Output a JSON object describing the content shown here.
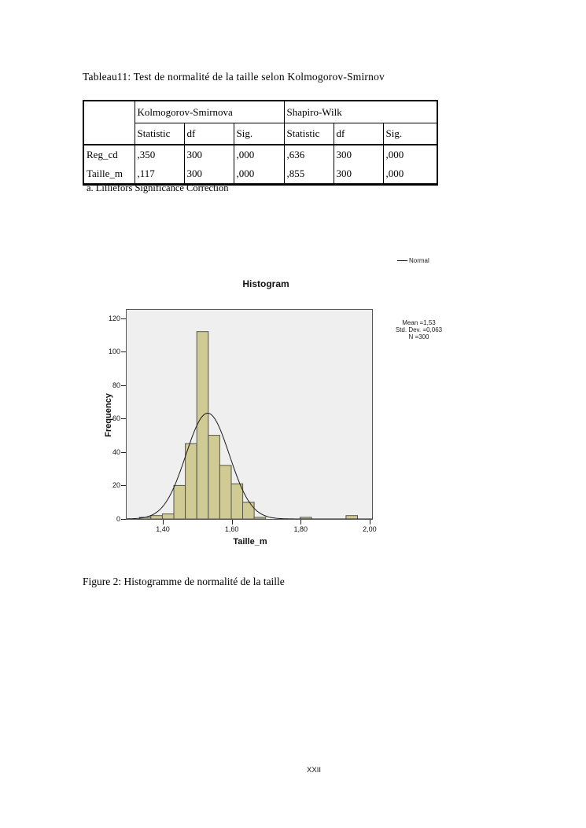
{
  "page": {
    "number_label": "XXII"
  },
  "table_section": {
    "title": "Tableau11: Test de normalité de la taille selon Kolmogorov-Smirnov",
    "table": {
      "group_headers": [
        "Kolmogorov-Smirnova",
        "Shapiro-Wilk"
      ],
      "sub_headers": [
        "Statistic",
        "df",
        "Sig.",
        "Statistic",
        "df",
        "Sig."
      ],
      "rows": [
        {
          "label": "Reg_cd",
          "values": [
            ",350",
            "300",
            ",000",
            ",636",
            "300",
            ",000"
          ]
        },
        {
          "label": "Taille_m",
          "values": [
            ",117",
            "300",
            ",000",
            ",855",
            "300",
            ",000"
          ]
        }
      ],
      "footnote": "a. Lilliefors Significance Correction"
    }
  },
  "figure_section": {
    "caption": "Figure 2: Histogramme de normalité de la taille"
  },
  "chart_data": {
    "type": "bar",
    "subtype": "histogram",
    "title": "Histogram",
    "xlabel": "Taille_m",
    "ylabel": "Frequency",
    "legend": {
      "label": "Normal",
      "position": "top-right-outside"
    },
    "stats_box": [
      "Mean =1,53",
      "Std. Dev. =0,063",
      "N =300"
    ],
    "bin_start": 1.332,
    "bin_width": 0.0333,
    "counts": [
      1,
      2,
      3,
      20,
      45,
      112,
      50,
      32,
      21,
      10,
      1,
      0,
      0,
      0,
      1,
      0,
      0,
      0,
      2
    ],
    "normal_curve": {
      "mean": 1.53,
      "std_dev": 0.063,
      "n": 300
    },
    "x_tick_values": [
      1.4,
      1.6,
      1.8,
      2.0
    ],
    "x_tick_labels": [
      "1,40",
      "1,60",
      "1,80",
      "2,00"
    ],
    "y_tick_values": [
      0,
      20,
      40,
      60,
      80,
      100,
      120
    ],
    "xlim": [
      1.295,
      2.007
    ],
    "ylim": [
      0,
      125
    ],
    "grid": false,
    "colors": {
      "bar_fill": "#d0ca95",
      "bar_stroke": "#55544a",
      "curve": "#1a1a1a",
      "plot_bg": "#efefef",
      "plot_frame": "#555555"
    }
  }
}
